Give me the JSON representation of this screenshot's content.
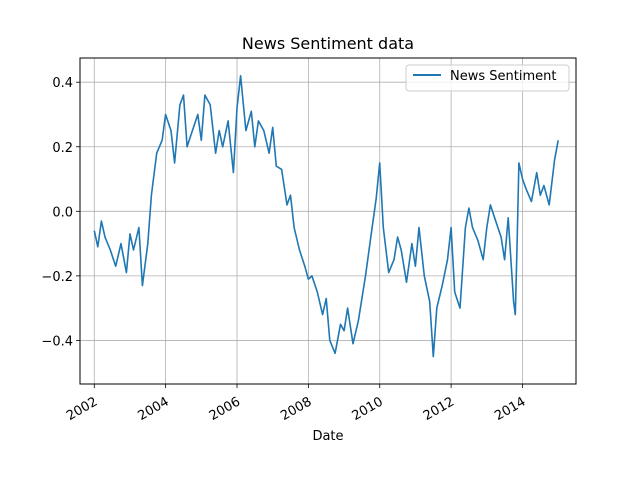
{
  "chart_data": {
    "type": "line",
    "title": "News Sentiment data",
    "xlabel": "Date",
    "ylabel": "",
    "xlim": [
      2001.6,
      2015.5
    ],
    "ylim": [
      -0.535,
      0.475
    ],
    "x_ticks": [
      2002,
      2004,
      2006,
      2008,
      2010,
      2012,
      2014
    ],
    "x_tick_labels": [
      "2002",
      "2004",
      "2006",
      "2008",
      "2010",
      "2012",
      "2014"
    ],
    "y_ticks": [
      -0.4,
      -0.2,
      0.0,
      0.2,
      0.4
    ],
    "y_tick_labels": [
      "−0.4",
      "−0.2",
      "0.0",
      "0.2",
      "0.4"
    ],
    "grid": true,
    "legend_position": "top-right",
    "line_color": "#1f77b4",
    "series": [
      {
        "name": "News Sentiment",
        "x": [
          2002.0,
          2002.1,
          2002.2,
          2002.3,
          2002.45,
          2002.6,
          2002.75,
          2002.9,
          2003.0,
          2003.1,
          2003.25,
          2003.35,
          2003.5,
          2003.6,
          2003.75,
          2003.9,
          2004.0,
          2004.15,
          2004.25,
          2004.4,
          2004.5,
          2004.6,
          2004.75,
          2004.9,
          2005.0,
          2005.1,
          2005.25,
          2005.4,
          2005.5,
          2005.6,
          2005.75,
          2005.9,
          2006.0,
          2006.1,
          2006.25,
          2006.4,
          2006.5,
          2006.6,
          2006.75,
          2006.9,
          2007.0,
          2007.1,
          2007.25,
          2007.4,
          2007.5,
          2007.6,
          2007.75,
          2007.9,
          2008.0,
          2008.1,
          2008.25,
          2008.4,
          2008.5,
          2008.6,
          2008.75,
          2008.9,
          2009.0,
          2009.1,
          2009.25,
          2009.4,
          2009.5,
          2009.6,
          2009.75,
          2009.9,
          2010.0,
          2010.1,
          2010.25,
          2010.4,
          2010.5,
          2010.6,
          2010.75,
          2010.9,
          2011.0,
          2011.1,
          2011.25,
          2011.4,
          2011.5,
          2011.6,
          2011.75,
          2011.9,
          2012.0,
          2012.1,
          2012.25,
          2012.4,
          2012.5,
          2012.6,
          2012.75,
          2012.9,
          2013.0,
          2013.1,
          2013.25,
          2013.4,
          2013.5,
          2013.6,
          2013.75,
          2013.8,
          2013.85,
          2013.9,
          2014.0,
          2014.1,
          2014.25,
          2014.4,
          2014.5,
          2014.6,
          2014.75,
          2014.9,
          2015.0
        ],
        "y": [
          -0.06,
          -0.11,
          -0.03,
          -0.08,
          -0.12,
          -0.17,
          -0.1,
          -0.19,
          -0.07,
          -0.12,
          -0.05,
          -0.23,
          -0.1,
          0.05,
          0.18,
          0.22,
          0.3,
          0.25,
          0.15,
          0.33,
          0.36,
          0.2,
          0.25,
          0.3,
          0.22,
          0.36,
          0.33,
          0.18,
          0.25,
          0.2,
          0.28,
          0.12,
          0.32,
          0.42,
          0.25,
          0.31,
          0.2,
          0.28,
          0.25,
          0.18,
          0.26,
          0.14,
          0.13,
          0.02,
          0.05,
          -0.05,
          -0.12,
          -0.17,
          -0.21,
          -0.2,
          -0.25,
          -0.32,
          -0.27,
          -0.4,
          -0.44,
          -0.35,
          -0.37,
          -0.3,
          -0.41,
          -0.34,
          -0.27,
          -0.2,
          -0.08,
          0.04,
          0.15,
          -0.05,
          -0.19,
          -0.15,
          -0.08,
          -0.12,
          -0.22,
          -0.1,
          -0.17,
          -0.05,
          -0.2,
          -0.28,
          -0.45,
          -0.3,
          -0.23,
          -0.15,
          -0.05,
          -0.25,
          -0.3,
          -0.05,
          0.01,
          -0.05,
          -0.09,
          -0.15,
          -0.05,
          0.02,
          -0.03,
          -0.08,
          -0.15,
          -0.02,
          -0.28,
          -0.32,
          -0.1,
          0.15,
          0.1,
          0.07,
          0.03,
          0.12,
          0.05,
          0.08,
          0.02,
          0.16,
          0.22
        ]
      }
    ]
  }
}
